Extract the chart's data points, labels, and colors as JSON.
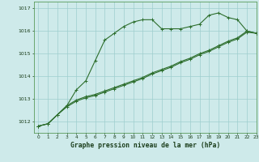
{
  "title": "Graphe pression niveau de la mer (hPa)",
  "bg_color": "#ceeaea",
  "grid_color": "#9ecece",
  "line_color": "#2d6e2d",
  "xlim": [
    -0.5,
    23
  ],
  "ylim": [
    1011.5,
    1017.3
  ],
  "yticks": [
    1012,
    1013,
    1014,
    1015,
    1016,
    1017
  ],
  "xticks": [
    0,
    1,
    2,
    3,
    4,
    5,
    6,
    7,
    8,
    9,
    10,
    11,
    12,
    13,
    14,
    15,
    16,
    17,
    18,
    19,
    20,
    21,
    22,
    23
  ],
  "line1_x": [
    0,
    1,
    2,
    3,
    4,
    5,
    6,
    7,
    8,
    9,
    10,
    11,
    12,
    13,
    14,
    15,
    16,
    17,
    18,
    19,
    20,
    21,
    22,
    23
  ],
  "line1_y": [
    1011.8,
    1011.9,
    1012.3,
    1012.7,
    1013.4,
    1013.8,
    1014.7,
    1015.6,
    1015.9,
    1016.2,
    1016.4,
    1016.5,
    1016.5,
    1016.1,
    1016.1,
    1016.1,
    1016.2,
    1016.3,
    1016.7,
    1016.8,
    1016.6,
    1016.5,
    1016.0,
    1015.9
  ],
  "line2_x": [
    0,
    1,
    2,
    3,
    4,
    5,
    6,
    7,
    8,
    9,
    10,
    11,
    12,
    13,
    14,
    15,
    16,
    17,
    18,
    19,
    20,
    21,
    22,
    23
  ],
  "line2_y": [
    1011.8,
    1011.9,
    1012.3,
    1012.65,
    1012.9,
    1013.05,
    1013.15,
    1013.3,
    1013.45,
    1013.6,
    1013.75,
    1013.9,
    1014.1,
    1014.25,
    1014.4,
    1014.6,
    1014.75,
    1014.95,
    1015.1,
    1015.3,
    1015.5,
    1015.65,
    1015.95,
    1015.9
  ],
  "line3_x": [
    0,
    1,
    2,
    3,
    4,
    5,
    6,
    7,
    8,
    9,
    10,
    11,
    12,
    13,
    14,
    15,
    16,
    17,
    18,
    19,
    20,
    21,
    22,
    23
  ],
  "line3_y": [
    1011.8,
    1011.9,
    1012.3,
    1012.7,
    1012.95,
    1013.1,
    1013.2,
    1013.35,
    1013.5,
    1013.65,
    1013.8,
    1013.95,
    1014.15,
    1014.3,
    1014.45,
    1014.65,
    1014.8,
    1015.0,
    1015.15,
    1015.35,
    1015.55,
    1015.7,
    1016.0,
    1015.9
  ]
}
